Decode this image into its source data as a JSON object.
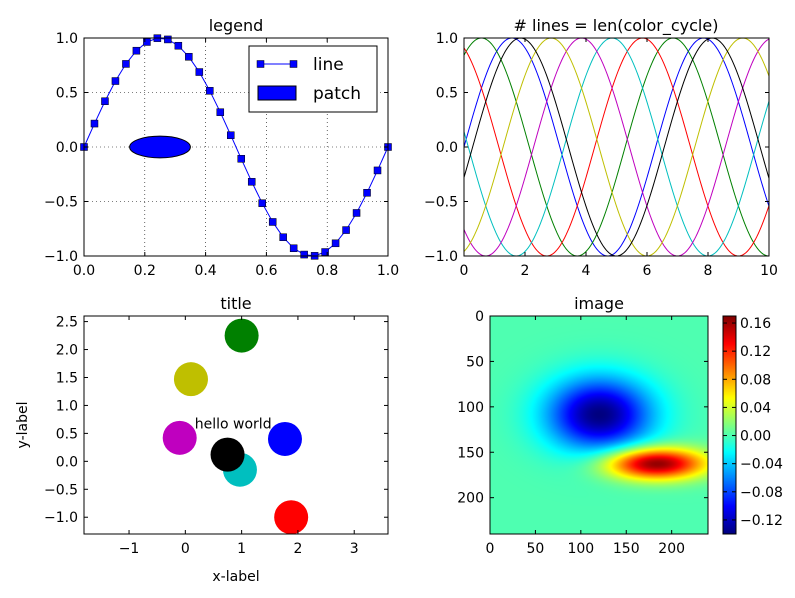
{
  "chart_data": [
    {
      "type": "line",
      "title": "legend",
      "xlabel": "",
      "ylabel": "",
      "xlim": [
        0,
        1
      ],
      "ylim": [
        -1,
        1
      ],
      "grid": true,
      "xticks": [
        "0.0",
        "0.2",
        "0.4",
        "0.6",
        "0.8",
        "1.0"
      ],
      "yticks": [
        "1.0",
        "0.5",
        "0.0",
        "−0.5",
        "−1.0"
      ],
      "series": [
        {
          "name": "line",
          "color": "#0000ff",
          "marker": "square",
          "function": "sin(2*pi*x)",
          "points": 30
        }
      ],
      "patch": {
        "name": "patch",
        "color": "#0000ff",
        "shape": "ellipse",
        "center": [
          0.25,
          0.0
        ],
        "width": 0.2,
        "height": 0.2
      },
      "legend": {
        "location": "top-right",
        "entries": [
          "line",
          "patch"
        ]
      }
    },
    {
      "type": "line",
      "title": "# lines = len(color_cycle)",
      "xlabel": "",
      "ylabel": "",
      "xlim": [
        0,
        10
      ],
      "ylim": [
        -1,
        1
      ],
      "grid": false,
      "xticks": [
        "0",
        "2",
        "4",
        "6",
        "8",
        "10"
      ],
      "yticks": [
        "1.0",
        "0.5",
        "0.0",
        "−0.5",
        "−1.0"
      ],
      "series": [
        {
          "name": "blue",
          "color": "#0000ff",
          "function": "sin(x + 0)"
        },
        {
          "name": "green",
          "color": "#008000",
          "function": "sin(x + 1)"
        },
        {
          "name": "red",
          "color": "#ff0000",
          "function": "sin(x + 2)"
        },
        {
          "name": "cyan",
          "color": "#00bfbf",
          "function": "sin(x + 3)"
        },
        {
          "name": "magenta",
          "color": "#bf00bf",
          "function": "sin(x + 4)"
        },
        {
          "name": "yellow",
          "color": "#bfbf00",
          "function": "sin(x + 5)"
        },
        {
          "name": "black",
          "color": "#000000",
          "function": "sin(x + 6)"
        }
      ]
    },
    {
      "type": "scatter",
      "title": "title",
      "xlabel": "x-label",
      "ylabel": "y-label",
      "xlim": [
        -1.8,
        3.6
      ],
      "ylim": [
        -1.3,
        2.6
      ],
      "grid": false,
      "xticks": [
        "−1",
        "0",
        "1",
        "2",
        "3"
      ],
      "yticks": [
        "2.5",
        "2.0",
        "1.5",
        "1.0",
        "0.5",
        "0.0",
        "−0.5",
        "−1.0"
      ],
      "annotation": {
        "text": "hello world",
        "x": 0.85,
        "y": 0.55
      },
      "points": [
        {
          "x": 1.0,
          "y": 2.25,
          "color": "#008000"
        },
        {
          "x": 0.1,
          "y": 1.47,
          "color": "#bfbf00"
        },
        {
          "x": -0.1,
          "y": 0.42,
          "color": "#bf00bf"
        },
        {
          "x": 0.97,
          "y": -0.15,
          "color": "#00bfbf"
        },
        {
          "x": 0.75,
          "y": 0.12,
          "color": "#000000"
        },
        {
          "x": 1.77,
          "y": 0.4,
          "color": "#0000ff"
        },
        {
          "x": 1.88,
          "y": -1.0,
          "color": "#ff0000"
        }
      ]
    },
    {
      "type": "heatmap",
      "title": "image",
      "xlabel": "",
      "ylabel": "",
      "xlim": [
        0,
        240
      ],
      "ylim": [
        240,
        0
      ],
      "xticks": [
        "0",
        "50",
        "100",
        "150",
        "200"
      ],
      "yticks": [
        "0",
        "50",
        "100",
        "150",
        "200"
      ],
      "colormap": "jet",
      "vmin": -0.14,
      "vmax": 0.17,
      "colorbar_ticks": [
        "0.16",
        "0.12",
        "0.08",
        "0.04",
        "0.00",
        "−0.04",
        "−0.08",
        "−0.12"
      ],
      "peaks": [
        {
          "x": 120,
          "y": 108,
          "value": -0.14,
          "sx": 40,
          "sy": 28
        },
        {
          "x": 182,
          "y": 162,
          "value": 0.17,
          "sx": 38,
          "sy": 12
        }
      ]
    }
  ]
}
